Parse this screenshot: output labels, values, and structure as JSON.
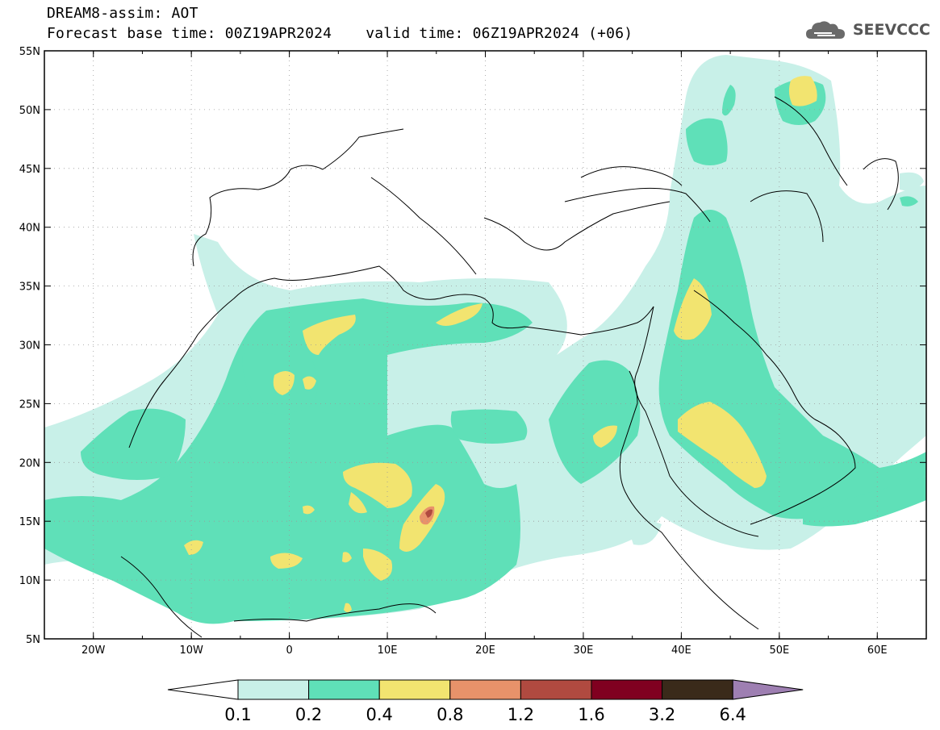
{
  "header": {
    "title": "DREAM8-assim: AOT",
    "base_time": "Forecast base time: 00Z19APR2024",
    "valid_time": "valid time: 06Z19APR2024 (+06)"
  },
  "logo": {
    "text": "SEEVCCC",
    "icon": "cloud-icon"
  },
  "map": {
    "lon_range": [
      -25,
      65
    ],
    "lat_range": [
      5,
      55
    ],
    "x_ticks": [
      "20W",
      "10W",
      "0",
      "10E",
      "20E",
      "30E",
      "40E",
      "50E",
      "60E"
    ],
    "y_ticks": [
      "55N",
      "50N",
      "45N",
      "40N",
      "35N",
      "30N",
      "25N",
      "20N",
      "15N",
      "10N",
      "5N"
    ],
    "grid": "dotted"
  },
  "colorbar": {
    "labels": [
      "0.1",
      "0.2",
      "0.4",
      "0.8",
      "1.2",
      "1.6",
      "3.2",
      "6.4"
    ],
    "colors": [
      "#ffffff",
      "#c8f0e8",
      "#5fe0b8",
      "#f2e470",
      "#e8926a",
      "#b04a40",
      "#800020",
      "#3a2a1a",
      "#9e7fb2"
    ]
  }
}
